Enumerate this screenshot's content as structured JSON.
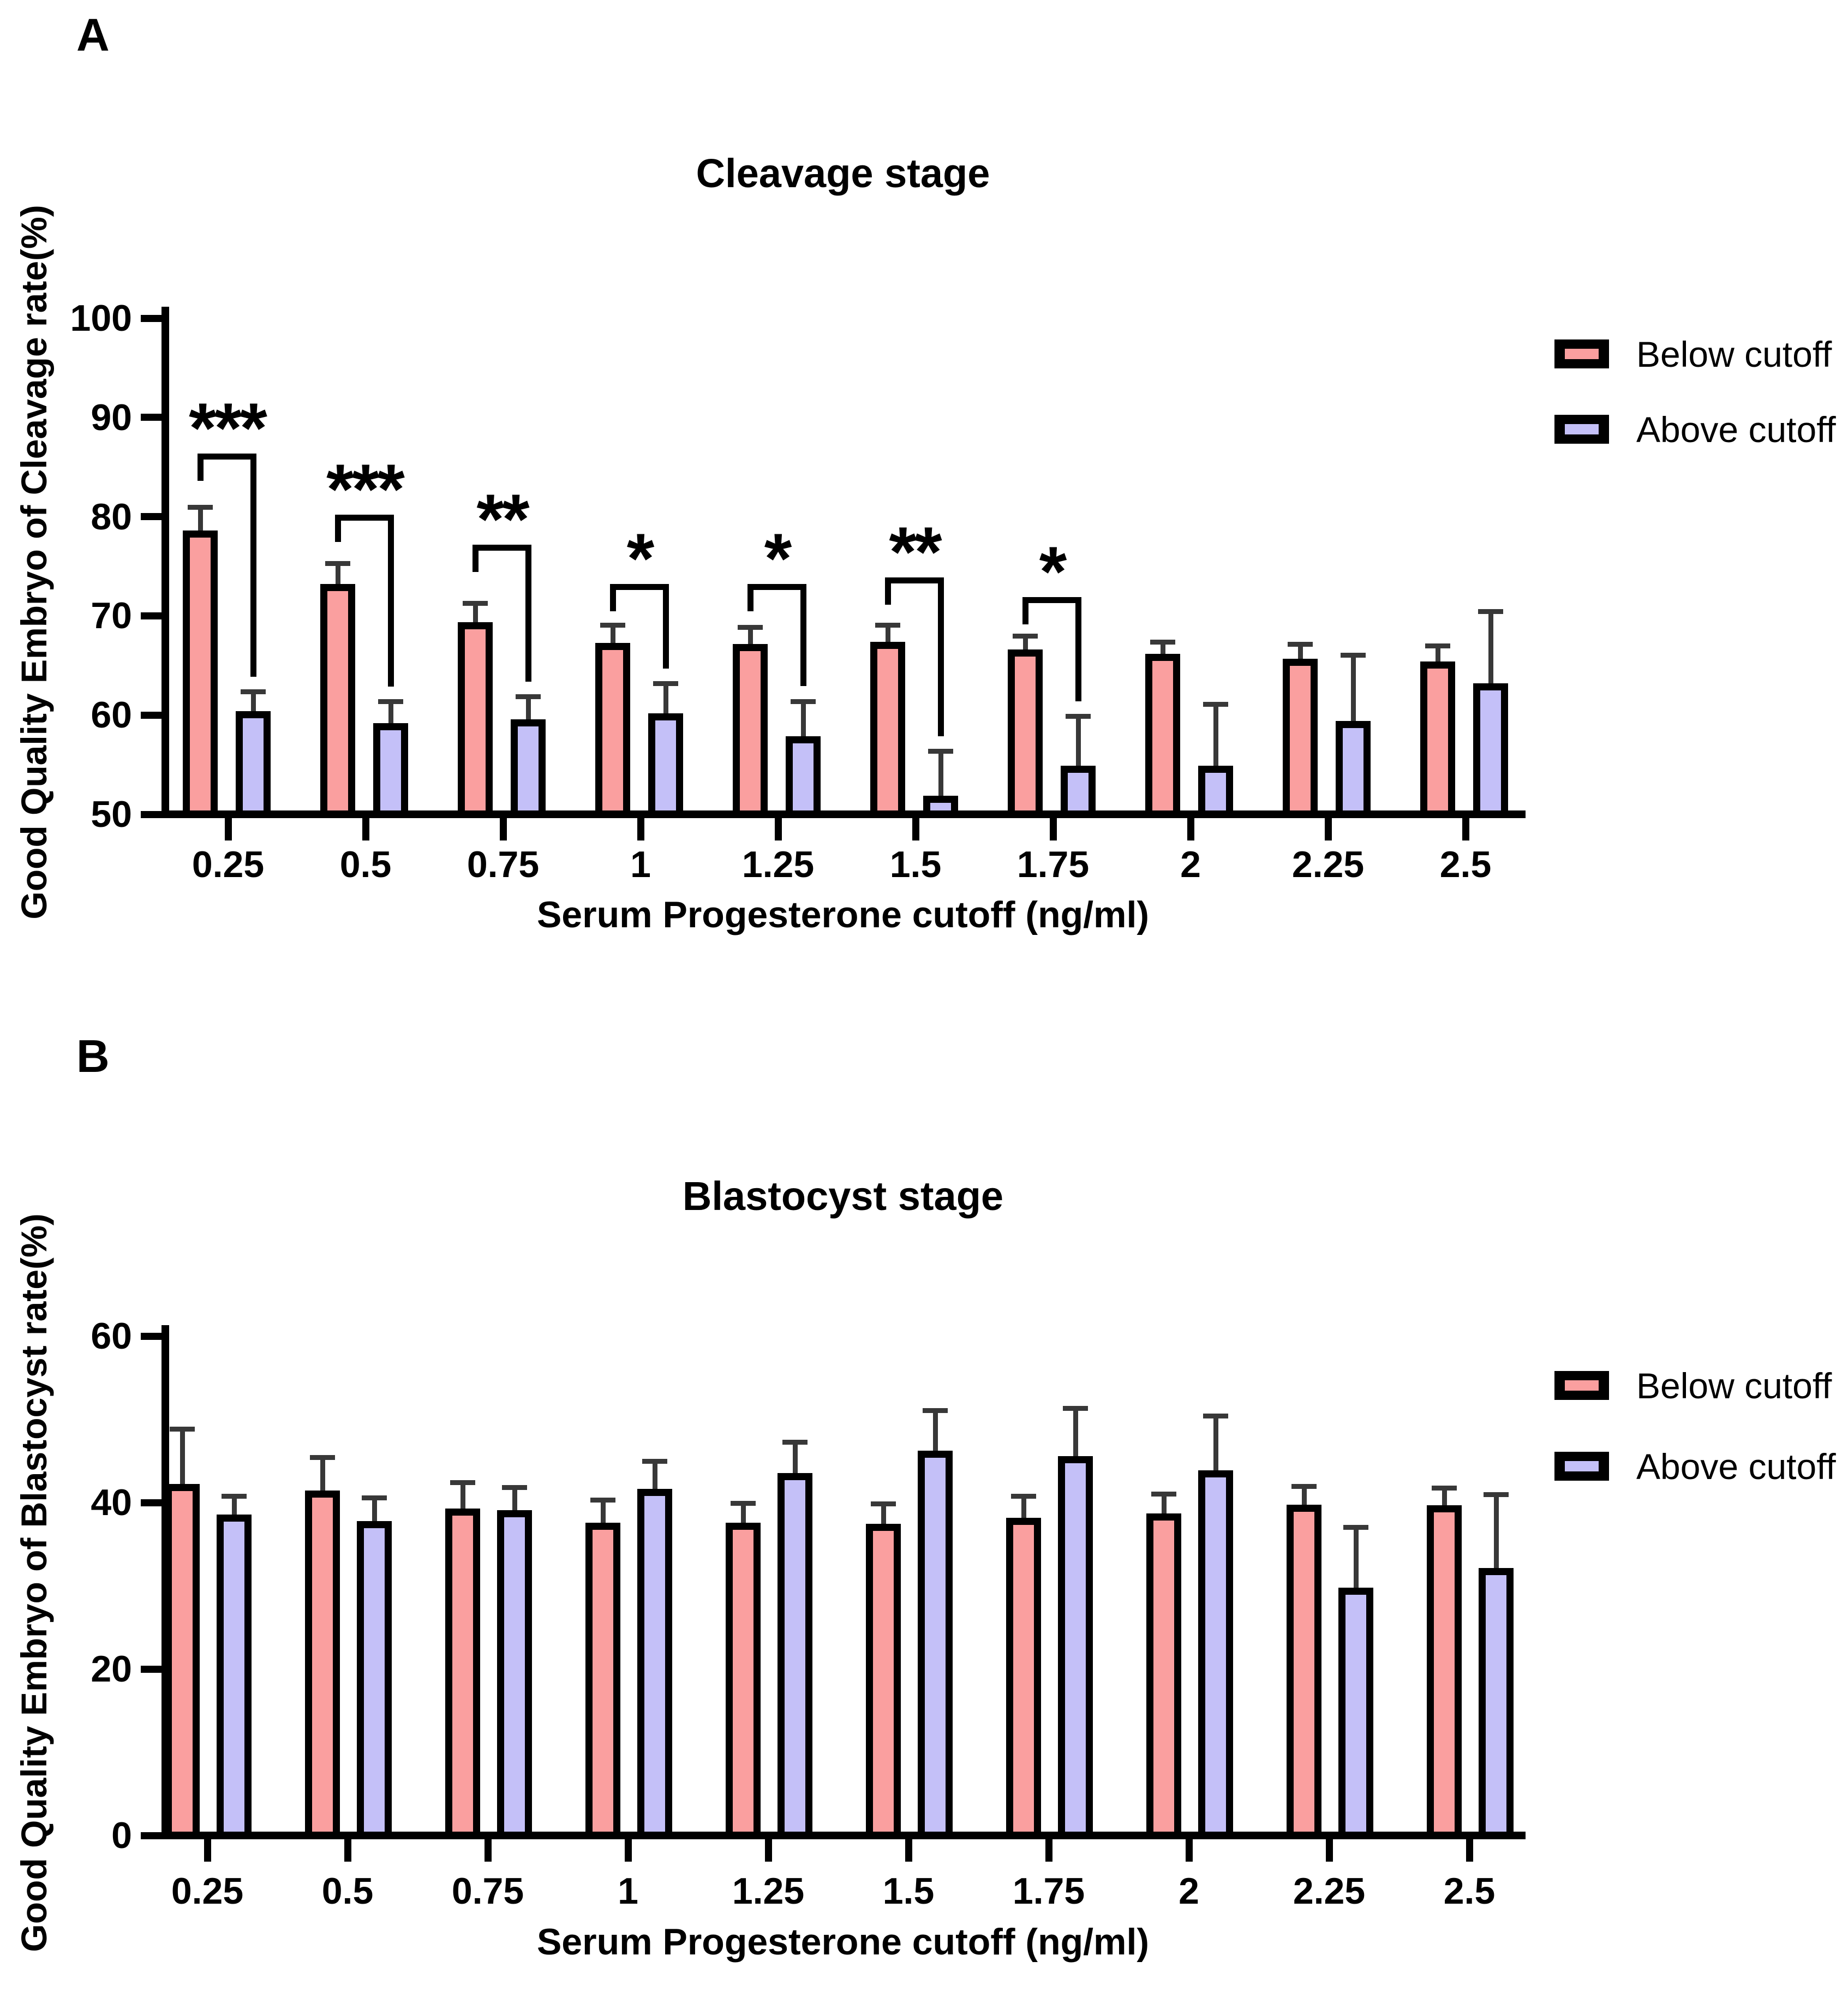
{
  "figure": {
    "panel_labels": [
      "A",
      "B"
    ],
    "colors": {
      "below_fill": "#FA9F9F",
      "above_fill": "#C4C0F8",
      "bar_outline": "#000000",
      "error_bar": "#383838",
      "axis": "#000000",
      "text": "#000000",
      "background": "#FFFFFF"
    },
    "legend": {
      "below_label": "Below cutoff",
      "above_label": "Above cutoff"
    }
  },
  "chart_data": [
    {
      "type": "bar",
      "panel_label": "A",
      "title": "Cleavage stage",
      "ylabel": "Good Quality Embryo of Cleavage rate(%)",
      "xlabel": "Serum Progesterone cutoff (ng/ml)",
      "ylim": [
        50,
        100
      ],
      "yticks": [
        50,
        60,
        70,
        80,
        90,
        100
      ],
      "grid": false,
      "legend_position": "right",
      "categories": [
        "0.25",
        "0.5",
        "0.75",
        "1",
        "1.25",
        "1.5",
        "1.75",
        "2",
        "2.25",
        "2.5"
      ],
      "series": [
        {
          "name": "Below cutoff",
          "values": [
            78.2,
            72.8,
            69.0,
            66.9,
            66.8,
            67.0,
            66.2,
            65.8,
            65.3,
            65.0
          ],
          "errors": [
            2.4,
            2.1,
            1.9,
            1.8,
            1.7,
            1.7,
            1.4,
            1.2,
            1.5,
            1.6
          ]
        },
        {
          "name": "Above cutoff",
          "values": [
            60.0,
            58.8,
            59.2,
            59.8,
            57.5,
            51.5,
            54.5,
            54.5,
            59.0,
            62.8
          ],
          "errors": [
            2.0,
            2.2,
            2.3,
            3.0,
            3.5,
            4.5,
            5.0,
            6.2,
            6.7,
            7.3
          ]
        }
      ],
      "significance": {
        "symbols": [
          "***",
          "***",
          "**",
          "*",
          "*",
          "**",
          "*",
          null,
          null,
          null
        ],
        "bracket_tops": [
          86.0,
          79.8,
          76.8,
          72.8,
          72.8,
          73.5,
          71.5,
          null,
          null,
          null
        ]
      }
    },
    {
      "type": "bar",
      "panel_label": "B",
      "title": "Blastocyst stage",
      "ylabel": "Good Quality Embryo of Blastocyst rate(%)",
      "xlabel": "Serum Progesterone cutoff (ng/ml)",
      "ylim": [
        0,
        60
      ],
      "yticks": [
        0,
        20,
        40,
        60
      ],
      "grid": false,
      "legend_position": "right",
      "categories": [
        "0.25",
        "0.5",
        "0.75",
        "1",
        "1.25",
        "1.5",
        "1.75",
        "2",
        "2.25",
        "2.5"
      ],
      "series": [
        {
          "name": "Below cutoff",
          "values": [
            41.8,
            41.0,
            38.8,
            37.1,
            37.1,
            37.0,
            37.7,
            38.2,
            39.3,
            39.2
          ],
          "errors": [
            6.6,
            4.0,
            3.2,
            2.8,
            2.4,
            2.4,
            2.6,
            2.4,
            2.2,
            2.1
          ]
        },
        {
          "name": "Above cutoff",
          "values": [
            38.1,
            37.3,
            38.6,
            41.2,
            43.1,
            45.8,
            45.1,
            43.4,
            29.3,
            31.7
          ],
          "errors": [
            2.2,
            2.8,
            2.8,
            3.3,
            3.7,
            4.8,
            5.8,
            6.6,
            7.3,
            8.8
          ]
        }
      ],
      "significance": null
    }
  ]
}
